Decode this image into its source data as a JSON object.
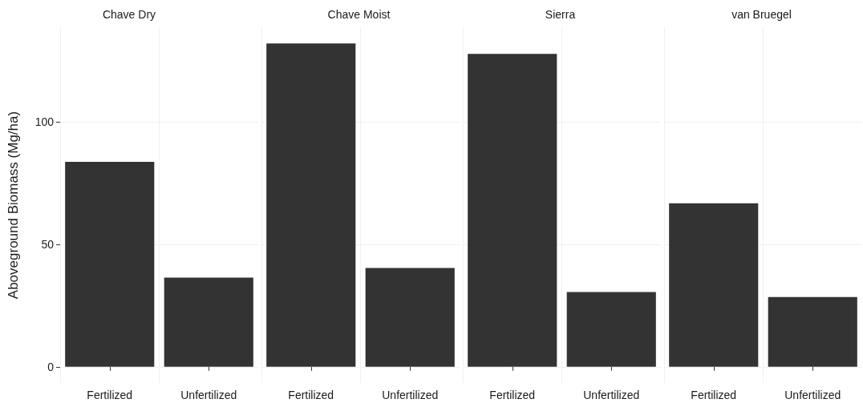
{
  "chart_data": [
    {
      "type": "bar",
      "title": "Chave Dry",
      "ylabel": "Aboveground Biomass (Mg/ha)",
      "categories": [
        "Fertilized",
        "Unfertilized"
      ],
      "values": [
        83.7,
        36.4
      ],
      "color": "#333333",
      "ylim": [
        -6.6,
        138.6
      ],
      "yticks": [
        0,
        50,
        100
      ],
      "grid": true
    },
    {
      "type": "bar",
      "title": "Chave Moist",
      "categories": [
        "Fertilized",
        "Unfertilized"
      ],
      "values": [
        132,
        40.3
      ],
      "color": "#333333",
      "ylim": [
        -6.6,
        138.6
      ],
      "yticks": [
        0,
        50,
        100
      ],
      "grid": true,
      "tick_labels": "x"
    },
    {
      "type": "bar",
      "title": "Sierra",
      "categories": [
        "Fertilized",
        "Unfertilized"
      ],
      "values": [
        127.7,
        30.5
      ],
      "color": "#333333",
      "ylim": [
        -6.6,
        138.6
      ],
      "yticks": [
        0,
        50,
        100
      ],
      "grid": true,
      "tick_labels": "x"
    },
    {
      "type": "bar",
      "title": "van Bruegel",
      "categories": [
        "Fertilized",
        "Unfertilized"
      ],
      "values": [
        66.7,
        28.5
      ],
      "color": "#333333",
      "ylim": [
        -6.6,
        138.6
      ],
      "yticks": [
        0,
        50,
        100
      ],
      "grid": true,
      "tick_labels": "x"
    }
  ]
}
